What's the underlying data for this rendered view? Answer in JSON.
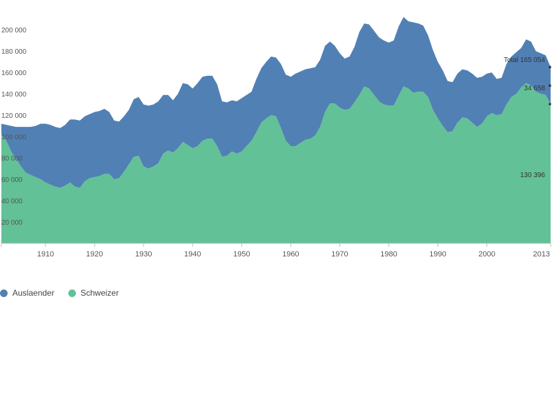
{
  "chart_data": {
    "type": "area",
    "stacked": true,
    "x": [
      1901,
      1902,
      1903,
      1904,
      1905,
      1906,
      1907,
      1908,
      1909,
      1910,
      1911,
      1912,
      1913,
      1914,
      1915,
      1916,
      1917,
      1918,
      1919,
      1920,
      1921,
      1922,
      1923,
      1924,
      1925,
      1926,
      1927,
      1928,
      1929,
      1930,
      1931,
      1932,
      1933,
      1934,
      1935,
      1936,
      1937,
      1938,
      1939,
      1940,
      1941,
      1942,
      1943,
      1944,
      1945,
      1946,
      1947,
      1948,
      1949,
      1950,
      1951,
      1952,
      1953,
      1954,
      1955,
      1956,
      1957,
      1958,
      1959,
      1960,
      1961,
      1962,
      1963,
      1964,
      1965,
      1966,
      1967,
      1968,
      1969,
      1970,
      1971,
      1972,
      1973,
      1974,
      1975,
      1976,
      1977,
      1978,
      1979,
      1980,
      1981,
      1982,
      1983,
      1984,
      1985,
      1986,
      1987,
      1988,
      1989,
      1990,
      1991,
      1992,
      1993,
      1994,
      1995,
      1996,
      1997,
      1998,
      1999,
      2000,
      2001,
      2002,
      2003,
      2004,
      2005,
      2006,
      2007,
      2008,
      2009,
      2010,
      2011,
      2012,
      2013
    ],
    "series": [
      {
        "name": "Schweizer",
        "values": [
          102000,
          96000,
          86000,
          79000,
          72000,
          66000,
          64000,
          62000,
          60000,
          57000,
          55000,
          53000,
          52000,
          54000,
          57000,
          53000,
          52000,
          58000,
          61000,
          62000,
          63000,
          65000,
          65000,
          60000,
          61000,
          67000,
          74000,
          81000,
          82000,
          72000,
          70000,
          72000,
          75000,
          84000,
          87000,
          85000,
          89000,
          95000,
          92000,
          89000,
          91000,
          96000,
          98000,
          98000,
          91000,
          81000,
          82000,
          86000,
          84000,
          86000,
          91000,
          96000,
          104000,
          113000,
          117000,
          120000,
          119000,
          108000,
          96000,
          91000,
          91000,
          94000,
          97000,
          98000,
          101000,
          109000,
          123000,
          131000,
          131000,
          127000,
          125000,
          126000,
          132000,
          139000,
          147000,
          145000,
          139000,
          133000,
          130000,
          129000,
          129000,
          138000,
          147000,
          145000,
          141000,
          142000,
          142000,
          137000,
          125000,
          117000,
          110000,
          104000,
          105000,
          113000,
          118000,
          117000,
          113000,
          109000,
          112000,
          119000,
          122000,
          120000,
          121000,
          130000,
          137000,
          140000,
          146000,
          150000,
          148000,
          142000,
          140000,
          139000,
          130396
        ]
      },
      {
        "name": "Auslaender",
        "values": [
          10000,
          15000,
          24000,
          30000,
          37000,
          43000,
          45000,
          48000,
          52000,
          55000,
          56000,
          56000,
          56000,
          57000,
          59000,
          63000,
          63000,
          61000,
          60000,
          61000,
          61000,
          61000,
          58000,
          55000,
          53000,
          52000,
          51000,
          54000,
          55000,
          58000,
          59000,
          58000,
          58000,
          55000,
          52000,
          49000,
          51000,
          55000,
          57000,
          56000,
          59000,
          60000,
          59000,
          59000,
          58000,
          52000,
          50000,
          48000,
          49000,
          50000,
          48000,
          46000,
          50000,
          51000,
          53000,
          55000,
          55000,
          60000,
          62000,
          65000,
          68000,
          67000,
          66000,
          66000,
          64000,
          63000,
          62000,
          58000,
          54000,
          51000,
          48000,
          49000,
          52000,
          59000,
          59000,
          60000,
          60000,
          60000,
          60000,
          59000,
          61000,
          65000,
          65000,
          63000,
          66000,
          64000,
          62000,
          58000,
          56000,
          53000,
          52000,
          48000,
          46000,
          46000,
          45000,
          45000,
          46000,
          46000,
          44000,
          40000,
          38000,
          34000,
          34000,
          38000,
          38000,
          39000,
          37000,
          41000,
          41000,
          38000,
          38000,
          37000,
          34658
        ]
      }
    ],
    "colors": {
      "Schweizer": "#62c196",
      "Auslaender": "#5180b5"
    },
    "ylim": [
      0,
      215000
    ],
    "yticks": [
      20000,
      40000,
      60000,
      80000,
      100000,
      120000,
      140000,
      160000,
      180000,
      200000
    ],
    "ytick_labels": [
      "20 000",
      "40 000",
      "60 000",
      "80 000",
      "100 000",
      "120 000",
      "140 000",
      "160 000",
      "180 000",
      "200 000"
    ],
    "xlim": [
      1901,
      2013
    ],
    "xticks": [
      1910,
      1920,
      1930,
      1940,
      1950,
      1960,
      1970,
      1980,
      1990,
      2000,
      2013
    ],
    "xtick_labels": [
      "1910",
      "1920",
      "1930",
      "1940",
      "1950",
      "1960",
      "1970",
      "1980",
      "1990",
      "2000",
      "2013"
    ],
    "grid": false,
    "legend_position": "bottom-left",
    "legend": [
      {
        "name": "Auslaender",
        "label": "Auslaender"
      },
      {
        "name": "Schweizer",
        "label": "Schweizer"
      }
    ],
    "annotations": {
      "total": "Total 165 054",
      "auslaender_last": "34 658",
      "schweizer_last": "130 396"
    }
  }
}
